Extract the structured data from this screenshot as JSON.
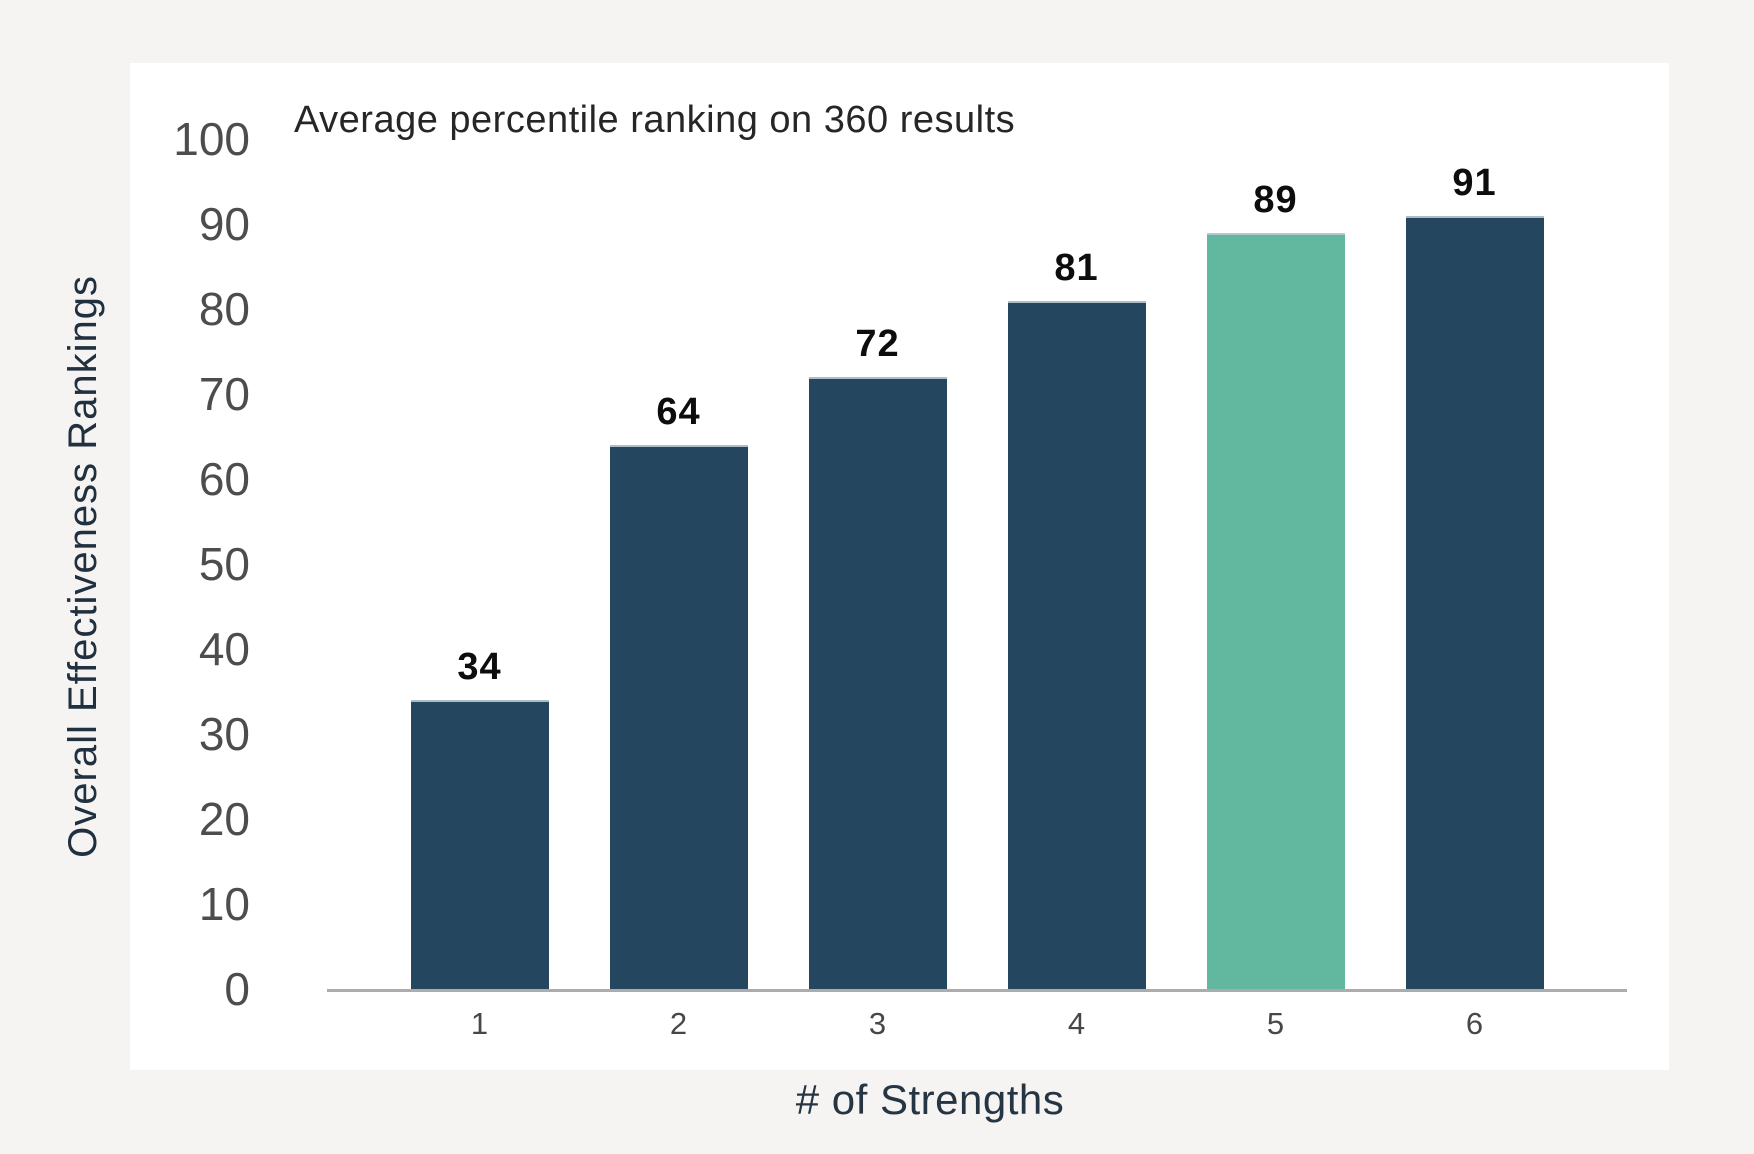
{
  "page": {
    "background_color": "#f5f4f3",
    "panel_color": "#ffffff"
  },
  "chart_data": {
    "type": "bar",
    "title": "Average percentile ranking on 360 results",
    "xlabel": "# of Strengths",
    "ylabel": "Overall Effectiveness Rankings",
    "categories": [
      "1",
      "2",
      "3",
      "4",
      "5",
      "6"
    ],
    "values": [
      34,
      64,
      72,
      81,
      89,
      91
    ],
    "ylim": [
      0,
      100
    ],
    "yticks": [
      0,
      10,
      20,
      30,
      40,
      50,
      60,
      70,
      80,
      90,
      100
    ],
    "grid": false,
    "legend": "none",
    "bar_color": "#24465e",
    "highlight_bar_color": "#62b89e",
    "highlight_index": 4,
    "axis_line_color": "#acacac"
  }
}
